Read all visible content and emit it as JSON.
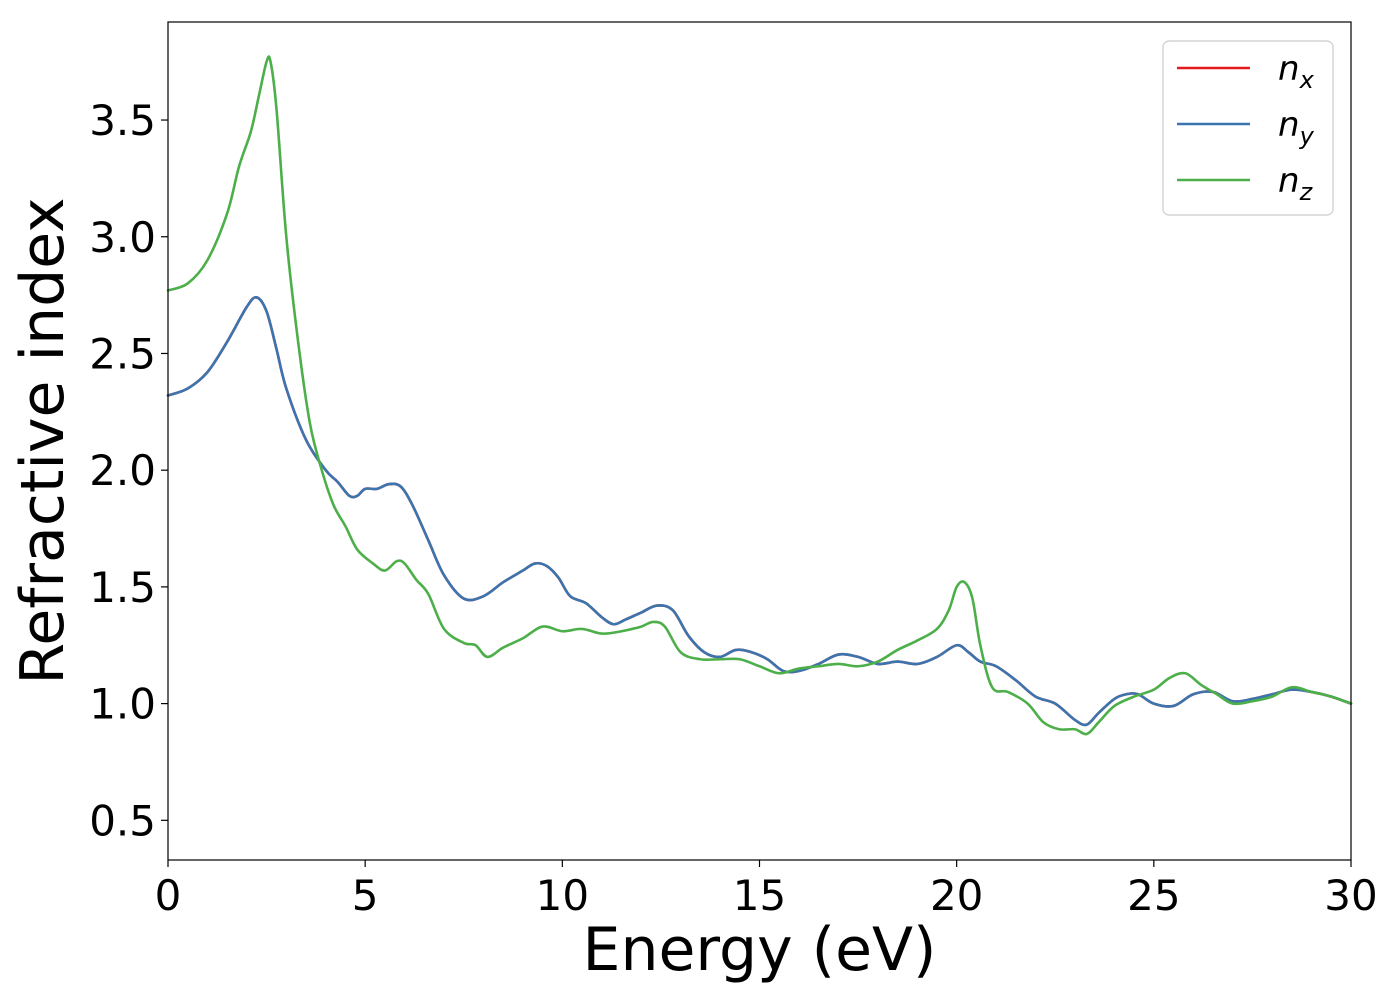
{
  "chart_data": {
    "type": "line",
    "title": "",
    "xlabel": "Energy (eV)",
    "ylabel": "Refractive index",
    "xlim": [
      0,
      30
    ],
    "ylim": [
      0.33,
      3.92
    ],
    "xticks": [
      0,
      5,
      10,
      15,
      20,
      25,
      30
    ],
    "yticks": [
      0.5,
      1.0,
      1.5,
      2.0,
      2.5,
      3.0,
      3.5
    ],
    "grid": false,
    "legend_position": "top-right",
    "series": [
      {
        "name": "n_x",
        "legend_base": "n",
        "legend_sub": "x",
        "color": "#e41a1c",
        "x": [
          0,
          0.5,
          1.0,
          1.5,
          2.0,
          2.25,
          2.5,
          2.75,
          3.0,
          3.5,
          4.0,
          4.3,
          4.6,
          4.8,
          5.0,
          5.3,
          5.6,
          5.9,
          6.2,
          6.6,
          7.0,
          7.5,
          8.0,
          8.5,
          9.0,
          9.3,
          9.6,
          9.9,
          10.2,
          10.6,
          11.0,
          11.3,
          11.6,
          12.0,
          12.4,
          12.8,
          13.2,
          13.6,
          14.0,
          14.4,
          14.8,
          15.2,
          15.6,
          16.0,
          16.5,
          17.0,
          17.5,
          18.0,
          18.5,
          19.0,
          19.5,
          20.0,
          20.3,
          20.6,
          21.0,
          21.5,
          22.0,
          22.5,
          23.0,
          23.3,
          23.6,
          24.0,
          24.3,
          24.6,
          25.0,
          25.5,
          26.0,
          26.5,
          27.0,
          27.5,
          28.0,
          28.5,
          29.0,
          29.5,
          30.0
        ],
        "values": [
          2.32,
          2.35,
          2.42,
          2.55,
          2.7,
          2.74,
          2.68,
          2.52,
          2.35,
          2.13,
          2.0,
          1.95,
          1.89,
          1.89,
          1.92,
          1.92,
          1.94,
          1.93,
          1.85,
          1.7,
          1.55,
          1.45,
          1.46,
          1.52,
          1.57,
          1.6,
          1.59,
          1.54,
          1.46,
          1.43,
          1.37,
          1.34,
          1.36,
          1.39,
          1.42,
          1.4,
          1.29,
          1.22,
          1.2,
          1.23,
          1.22,
          1.19,
          1.14,
          1.14,
          1.17,
          1.21,
          1.2,
          1.17,
          1.18,
          1.17,
          1.2,
          1.25,
          1.22,
          1.18,
          1.16,
          1.1,
          1.03,
          1.0,
          0.93,
          0.91,
          0.96,
          1.02,
          1.04,
          1.04,
          1.0,
          0.99,
          1.04,
          1.05,
          1.01,
          1.02,
          1.04,
          1.06,
          1.05,
          1.03,
          1.0
        ]
      },
      {
        "name": "n_y",
        "legend_base": "n",
        "legend_sub": "y",
        "color": "#3b75af",
        "x": [
          0,
          0.5,
          1.0,
          1.5,
          2.0,
          2.25,
          2.5,
          2.75,
          3.0,
          3.5,
          4.0,
          4.3,
          4.6,
          4.8,
          5.0,
          5.3,
          5.6,
          5.9,
          6.2,
          6.6,
          7.0,
          7.5,
          8.0,
          8.5,
          9.0,
          9.3,
          9.6,
          9.9,
          10.2,
          10.6,
          11.0,
          11.3,
          11.6,
          12.0,
          12.4,
          12.8,
          13.2,
          13.6,
          14.0,
          14.4,
          14.8,
          15.2,
          15.6,
          16.0,
          16.5,
          17.0,
          17.5,
          18.0,
          18.5,
          19.0,
          19.5,
          20.0,
          20.3,
          20.6,
          21.0,
          21.5,
          22.0,
          22.5,
          23.0,
          23.3,
          23.6,
          24.0,
          24.3,
          24.6,
          25.0,
          25.5,
          26.0,
          26.5,
          27.0,
          27.5,
          28.0,
          28.5,
          29.0,
          29.5,
          30.0
        ],
        "values": [
          2.32,
          2.35,
          2.42,
          2.55,
          2.7,
          2.74,
          2.68,
          2.52,
          2.35,
          2.13,
          2.0,
          1.95,
          1.89,
          1.89,
          1.92,
          1.92,
          1.94,
          1.93,
          1.85,
          1.7,
          1.55,
          1.45,
          1.46,
          1.52,
          1.57,
          1.6,
          1.59,
          1.54,
          1.46,
          1.43,
          1.37,
          1.34,
          1.36,
          1.39,
          1.42,
          1.4,
          1.29,
          1.22,
          1.2,
          1.23,
          1.22,
          1.19,
          1.14,
          1.14,
          1.17,
          1.21,
          1.2,
          1.17,
          1.18,
          1.17,
          1.2,
          1.25,
          1.22,
          1.18,
          1.16,
          1.1,
          1.03,
          1.0,
          0.93,
          0.91,
          0.96,
          1.02,
          1.04,
          1.04,
          1.0,
          0.99,
          1.04,
          1.05,
          1.01,
          1.02,
          1.04,
          1.06,
          1.05,
          1.03,
          1.0
        ]
      },
      {
        "name": "n_z",
        "legend_base": "n",
        "legend_sub": "z",
        "color": "#4daf4a",
        "x": [
          0,
          0.5,
          1.0,
          1.5,
          1.8,
          2.1,
          2.3,
          2.5,
          2.6,
          2.75,
          3.0,
          3.3,
          3.6,
          3.9,
          4.2,
          4.5,
          4.8,
          5.2,
          5.5,
          5.8,
          6.0,
          6.3,
          6.6,
          7.0,
          7.5,
          7.8,
          8.1,
          8.5,
          9.0,
          9.5,
          10.0,
          10.5,
          11.0,
          11.5,
          12.0,
          12.3,
          12.6,
          13.0,
          13.5,
          14.0,
          14.5,
          15.0,
          15.5,
          16.0,
          16.5,
          17.0,
          17.5,
          18.0,
          18.5,
          19.0,
          19.5,
          19.8,
          20.0,
          20.2,
          20.4,
          20.6,
          20.9,
          21.3,
          21.8,
          22.2,
          22.6,
          23.0,
          23.3,
          23.6,
          24.0,
          24.5,
          25.0,
          25.4,
          25.8,
          26.2,
          26.6,
          27.0,
          27.5,
          28.0,
          28.5,
          29.0,
          29.5,
          30.0
        ],
        "values": [
          2.77,
          2.8,
          2.9,
          3.1,
          3.3,
          3.45,
          3.6,
          3.75,
          3.75,
          3.55,
          3.0,
          2.55,
          2.2,
          2.0,
          1.85,
          1.76,
          1.66,
          1.6,
          1.57,
          1.61,
          1.6,
          1.53,
          1.47,
          1.32,
          1.26,
          1.25,
          1.2,
          1.24,
          1.28,
          1.33,
          1.31,
          1.32,
          1.3,
          1.31,
          1.33,
          1.35,
          1.33,
          1.22,
          1.19,
          1.19,
          1.19,
          1.16,
          1.13,
          1.15,
          1.16,
          1.17,
          1.16,
          1.18,
          1.23,
          1.27,
          1.32,
          1.4,
          1.5,
          1.52,
          1.45,
          1.25,
          1.07,
          1.05,
          1.0,
          0.92,
          0.89,
          0.89,
          0.87,
          0.92,
          0.99,
          1.03,
          1.06,
          1.11,
          1.13,
          1.08,
          1.04,
          1.0,
          1.01,
          1.03,
          1.07,
          1.05,
          1.03,
          1.0
        ]
      }
    ]
  }
}
